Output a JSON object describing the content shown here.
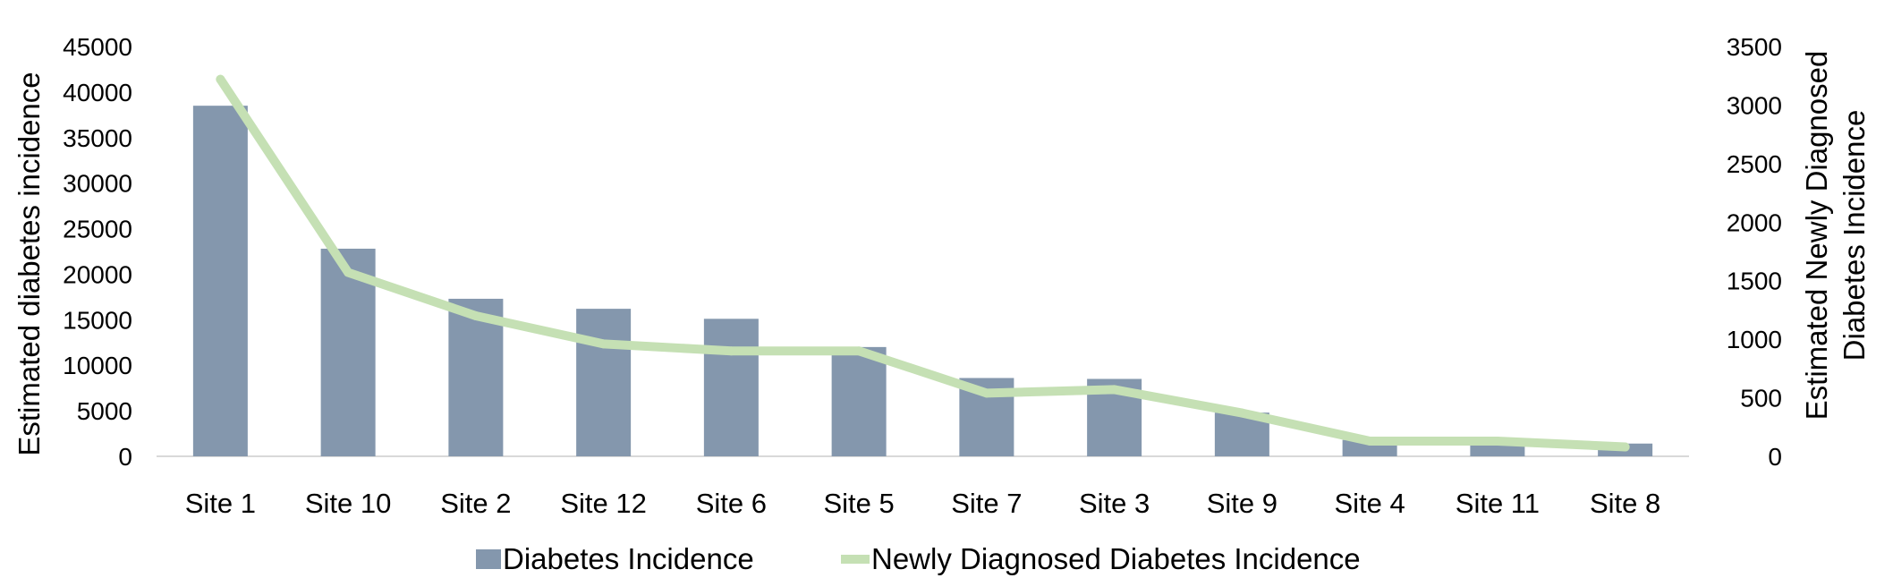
{
  "chart_data": {
    "type": "bar",
    "categories": [
      "Site 1",
      "Site 10",
      "Site 2",
      "Site 12",
      "Site 6",
      "Site 5",
      "Site 7",
      "Site 3",
      "Site 9",
      "Site 4",
      "Site 11",
      "Site 8"
    ],
    "series": [
      {
        "name": "Diabetes Incidence",
        "type": "bar",
        "axis": "left",
        "color": "#8497ad",
        "values": [
          38500,
          22800,
          17300,
          16200,
          15100,
          12000,
          8600,
          8500,
          4800,
          1800,
          1700,
          1400
        ]
      },
      {
        "name": "Newly Diagnosed Diabetes Incidence",
        "type": "line",
        "axis": "right",
        "color": "#c5e0b4",
        "values": [
          3220,
          1570,
          1200,
          960,
          900,
          900,
          540,
          570,
          370,
          130,
          130,
          80
        ]
      }
    ],
    "y_left": {
      "label": "Estimated diabetes incidence",
      "ylim": [
        0,
        45000
      ],
      "ticks": [
        "0",
        "5000",
        "10000",
        "15000",
        "20000",
        "25000",
        "30000",
        "35000",
        "40000",
        "45000"
      ]
    },
    "y_right": {
      "label": [
        "Estimated Newly Diagnosed",
        "Diabetes Incidence"
      ],
      "ylim": [
        0,
        3500
      ],
      "ticks": [
        "0",
        "500",
        "1000",
        "1500",
        "2000",
        "2500",
        "3000",
        "3500"
      ]
    },
    "grid": false,
    "legend": "bottom"
  }
}
